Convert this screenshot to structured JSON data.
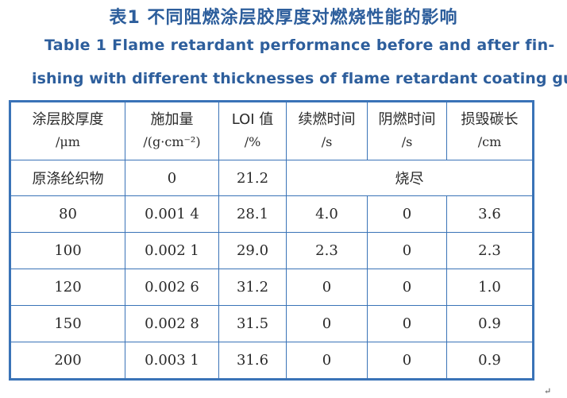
{
  "title_cn": "表1  不同阻燃涂层胶厚度对燃烧性能的影响",
  "title_en_line1": "Table 1  Flame retardant performance before and after fin-",
  "title_en_line2": "ishing with different thicknesses of flame retardant coating gum",
  "headers": [
    {
      "name": "涂层胶厚度",
      "unit": "/μm"
    },
    {
      "name": "施加量",
      "unit": "/(g·cm⁻²)"
    },
    {
      "name": "LOI 值",
      "unit": "/%"
    },
    {
      "name": "续燃时间",
      "unit": "/s"
    },
    {
      "name": "阴燃时间",
      "unit": "/s"
    },
    {
      "name": "损毁碳长",
      "unit": "/cm"
    }
  ],
  "first_row": {
    "label": "原涤纶织物",
    "amount": "0",
    "loi": "21.2",
    "merged": "烧尽"
  },
  "rows": [
    [
      "80",
      "0.001 4",
      "28.1",
      "4.0",
      "0",
      "3.6"
    ],
    [
      "100",
      "0.002 1",
      "29.0",
      "2.3",
      "0",
      "2.3"
    ],
    [
      "120",
      "0.002 6",
      "31.2",
      "0",
      "0",
      "1.0"
    ],
    [
      "150",
      "0.002 8",
      "31.5",
      "0",
      "0",
      "0.9"
    ],
    [
      "200",
      "0.003 1",
      "31.6",
      "0",
      "0",
      "0.9"
    ]
  ],
  "return_mark": "↵",
  "colors": {
    "title": "#2d5e9c",
    "border": "#3a73b7",
    "text": "#2a2a2a"
  }
}
